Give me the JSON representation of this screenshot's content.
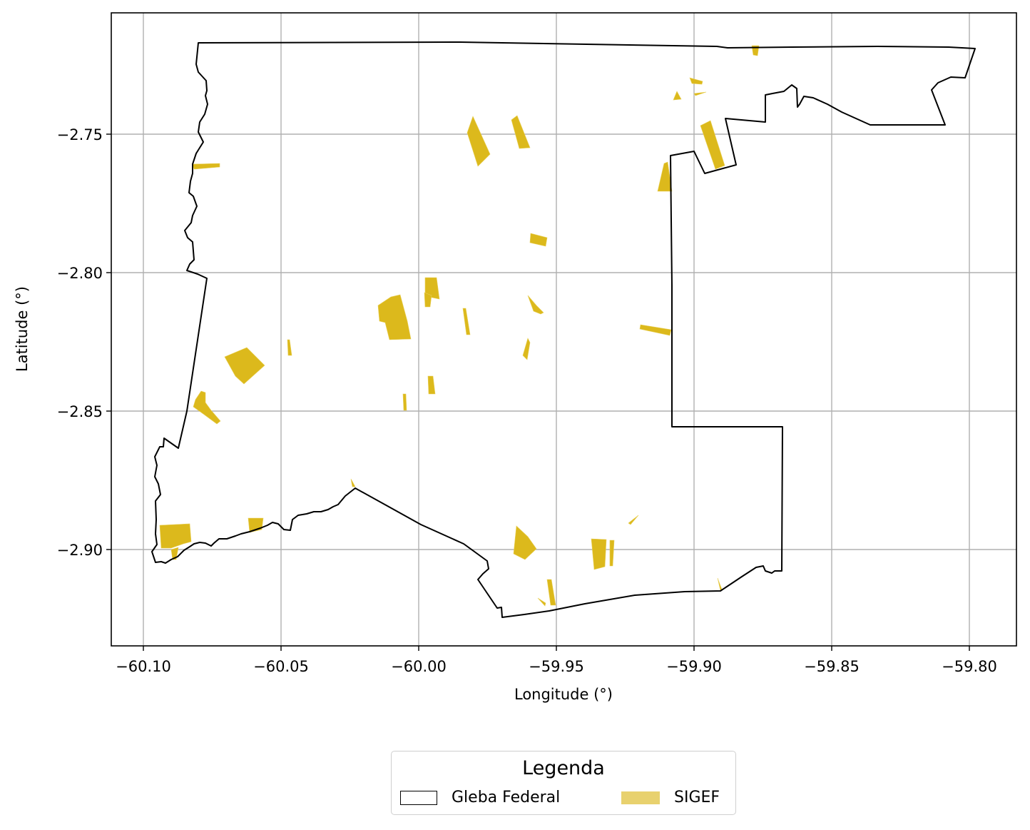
{
  "map": {
    "x_axis": {
      "label": "Longitude (°)",
      "ticks": [
        {
          "value": -60.1,
          "label": "−60.10"
        },
        {
          "value": -60.05,
          "label": "−60.05"
        },
        {
          "value": -60.0,
          "label": "−60.00"
        },
        {
          "value": -59.95,
          "label": "−59.95"
        },
        {
          "value": -59.9,
          "label": "−59.90"
        },
        {
          "value": -59.85,
          "label": "−59.85"
        },
        {
          "value": -59.8,
          "label": "−59.80"
        }
      ]
    },
    "y_axis": {
      "label": "Latitude (°)",
      "ticks": [
        {
          "value": -2.75,
          "label": "−2.75"
        },
        {
          "value": -2.8,
          "label": "−2.80"
        },
        {
          "value": -2.85,
          "label": "−2.85"
        },
        {
          "value": -2.9,
          "label": "−2.90"
        }
      ]
    },
    "grid": true,
    "colors": {
      "boundary": "#000000",
      "parcels": "#dcb91c",
      "parcels_legend": "#e8d16e",
      "grid": "#b0b0b0"
    },
    "legend": {
      "title": "Legenda",
      "placement": "bottom-center, below plot",
      "items": [
        {
          "label": "Gleba Federal",
          "style": "outline"
        },
        {
          "label": "SIGEF",
          "style": "fill"
        }
      ]
    }
  }
}
